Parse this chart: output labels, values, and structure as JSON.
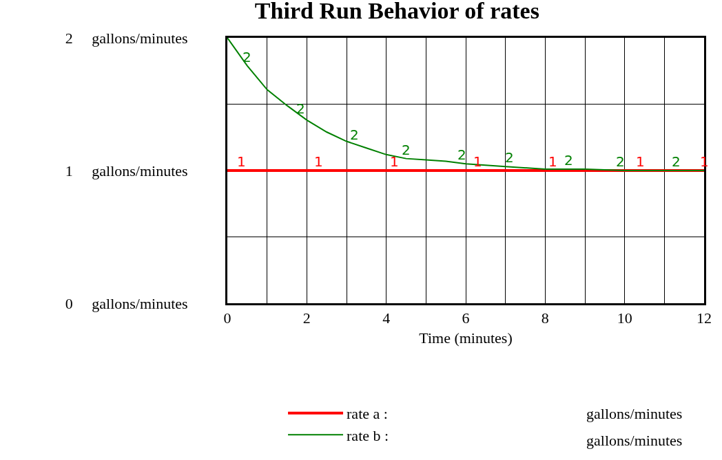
{
  "chart_data": {
    "type": "line",
    "title": "Third Run Behavior of rates",
    "xlabel": "Time (minutes)",
    "x": [
      0,
      0.5,
      1,
      1.5,
      2,
      2.5,
      3,
      3.5,
      4,
      4.5,
      5,
      5.5,
      6,
      7,
      8,
      9,
      10,
      11,
      12
    ],
    "series": [
      {
        "name": "rate a :",
        "color": "#ff0000",
        "values": [
          1,
          1,
          1,
          1,
          1,
          1,
          1,
          1,
          1,
          1,
          1,
          1,
          1,
          1,
          1,
          1,
          1,
          1,
          1
        ]
      },
      {
        "name": "rate b :",
        "color": "#008000",
        "values": [
          2.0,
          1.79,
          1.61,
          1.49,
          1.38,
          1.29,
          1.22,
          1.17,
          1.12,
          1.09,
          1.08,
          1.07,
          1.05,
          1.03,
          1.01,
          1.01,
          1.0,
          1.0,
          1.0
        ]
      }
    ],
    "xlim": [
      0,
      12
    ],
    "xticks": [
      0,
      {
        "value": 1,
        "label": null
      },
      2,
      {
        "value": 3,
        "label": null
      },
      4,
      {
        "value": 5,
        "label": null
      },
      6,
      {
        "value": 7,
        "label": null
      },
      8,
      {
        "value": 9,
        "label": null
      },
      10,
      {
        "value": 11,
        "label": null
      },
      12
    ],
    "ylim": [
      0,
      2
    ],
    "yticks": [
      {
        "value": 0,
        "label": "0     gallons/minutes"
      },
      {
        "value": 0.5,
        "label": null
      },
      {
        "value": 1,
        "label": "1     gallons/minutes"
      },
      {
        "value": 1.5,
        "label": null
      },
      {
        "value": 2,
        "label": "2     gallons/minutes"
      }
    ],
    "grid": true,
    "legend": "bottom",
    "annotations": [
      "gallons/minutes",
      "gallons/minutes",
      {
        "text": "1",
        "x": 0.35,
        "y": 1
      },
      {
        "text": "1",
        "x": 2.3,
        "y": 1
      },
      {
        "text": "1",
        "x": 4.2,
        "y": 1
      },
      {
        "text": "1",
        "x": 6.3,
        "y": 1
      },
      {
        "text": "1",
        "x": 8.2,
        "y": 1
      },
      {
        "text": "1",
        "x": 10.4,
        "y": 1
      },
      {
        "text": "1",
        "x": 12,
        "y": 1
      },
      {
        "text": "2",
        "x": 0.5,
        "y": 1.79
      },
      {
        "text": "2",
        "x": 1.85,
        "y": 1.4
      },
      {
        "text": "2",
        "x": 3.2,
        "y": 1.2
      },
      {
        "text": "2",
        "x": 4.5,
        "y": 1.09
      },
      {
        "text": "2",
        "x": 5.9,
        "y": 1.05
      },
      {
        "text": "2",
        "x": 7.1,
        "y": 1.03
      },
      {
        "text": "2",
        "x": 8.6,
        "y": 1.01
      },
      {
        "text": "2",
        "x": 9.9,
        "y": 1.0
      },
      {
        "text": "2",
        "x": 11.3,
        "y": 1.0
      }
    ]
  }
}
